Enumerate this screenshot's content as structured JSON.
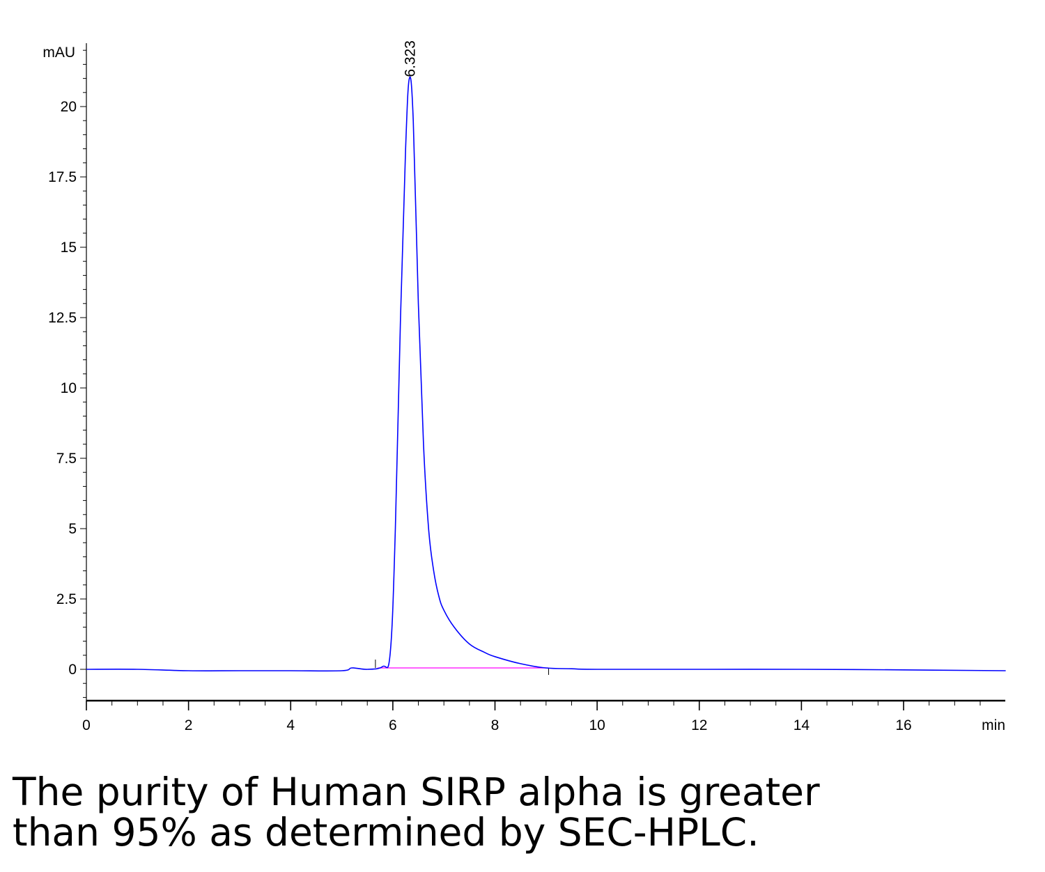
{
  "chart_data": {
    "type": "line",
    "title": "",
    "xlabel": "",
    "ylabel": "",
    "x_unit": "min",
    "y_unit": "mAU",
    "xlim": [
      0,
      18
    ],
    "ylim": [
      -1.1,
      22.2
    ],
    "x_ticks": [
      0,
      2,
      4,
      6,
      8,
      10,
      12,
      14,
      16
    ],
    "y_ticks": [
      0,
      2.5,
      5,
      7.5,
      10,
      12.5,
      15,
      17.5,
      20
    ],
    "x_tick_labels": [
      "0",
      "2",
      "4",
      "6",
      "8",
      "10",
      "12",
      "14",
      "16"
    ],
    "y_tick_labels": [
      "0",
      "2.5",
      "5",
      "7.5",
      "10",
      "12.5",
      "15",
      "17.5",
      "20"
    ],
    "grid": false,
    "series": [
      {
        "color": "#0000ff",
        "x": [
          0,
          1,
          2,
          3,
          4,
          5,
          5.2,
          5.5,
          5.8,
          5.95,
          6.05,
          6.15,
          6.25,
          6.323,
          6.4,
          6.5,
          6.6,
          6.7,
          6.8,
          6.9,
          7.0,
          7.2,
          7.5,
          7.8,
          8.0,
          8.5,
          9.0,
          9.5,
          10,
          12,
          14,
          16,
          18
        ],
        "y": [
          0,
          0,
          -0.05,
          -0.05,
          -0.05,
          -0.05,
          0.05,
          0.0,
          0.1,
          0.6,
          5.0,
          12.5,
          18.5,
          21.0,
          19.5,
          13.0,
          8.0,
          5.0,
          3.5,
          2.6,
          2.1,
          1.5,
          0.9,
          0.6,
          0.45,
          0.2,
          0.05,
          0.02,
          0.0,
          0.0,
          0.0,
          -0.02,
          -0.05
        ]
      }
    ],
    "baseline": {
      "color": "#ff00ff",
      "x": [
        5.7,
        9.05
      ],
      "y": [
        0.05,
        0.05
      ]
    },
    "peaks": [
      {
        "x": 6.323,
        "y": 21.0,
        "label": "6.323"
      }
    ]
  },
  "caption": {
    "line1": "The purity of Human SIRP alpha is greater",
    "line2": "than 95% as determined by SEC-HPLC."
  }
}
